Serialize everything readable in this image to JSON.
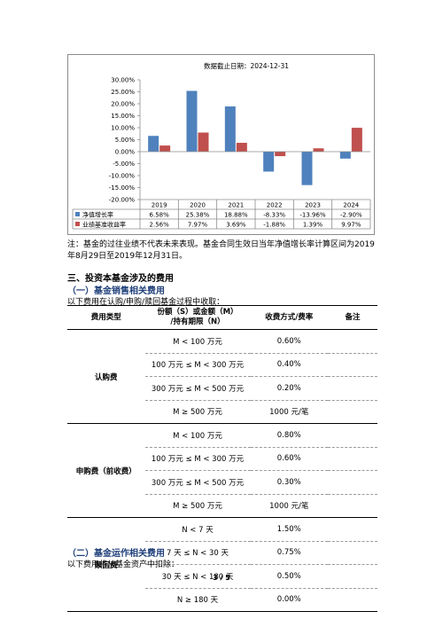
{
  "chart_data": {
    "type": "bar",
    "title": "数据截止日期：2024-12-31",
    "categories": [
      "2019",
      "2020",
      "2021",
      "2022",
      "2023",
      "2024"
    ],
    "series": [
      {
        "name": "净值增长率",
        "values": [
          6.58,
          25.38,
          18.88,
          -8.33,
          -13.96,
          -2.9
        ],
        "labels": [
          "6.58%",
          "25.38%",
          "18.88%",
          "-8.33%",
          "-13.96%",
          "-2.90%"
        ],
        "color": "#4f81bd"
      },
      {
        "name": "业绩基准收益率",
        "values": [
          2.56,
          7.97,
          3.69,
          -1.88,
          1.39,
          9.97
        ],
        "labels": [
          "2.56%",
          "7.97%",
          "3.69%",
          "-1.88%",
          "1.39%",
          "9.97%"
        ],
        "color": "#c0504d"
      }
    ],
    "ylim": [
      -20,
      30
    ],
    "yticks": [
      "30.00%",
      "25.00%",
      "20.00%",
      "15.00%",
      "10.00%",
      "5.00%",
      "0.00%",
      "-5.00%",
      "-10.00%",
      "-15.00%",
      "-20.00%"
    ],
    "legend": "data-table-bottom"
  },
  "note": "注：基金的过往业绩不代表未来表现。基金合同生效日当年净值增长率计算区间为2019年8月29日至2019年12月31日。",
  "section_title": "三、投资本基金涉及的费用",
  "subsection1": "（一）基金销售相关费用",
  "intro1": "以下费用在认购/申购/赎回基金过程中收取：",
  "table": {
    "headers": {
      "type": "费用类型",
      "range_line1": "份额（S）或金额（M）",
      "range_line2": "/持有期限（N）",
      "rate": "收费方式/费率",
      "remark": "备注"
    },
    "groups": [
      {
        "category": "认购费",
        "rows": [
          {
            "range": "M < 100 万元",
            "rate": "0.60%"
          },
          {
            "range": "100 万元 ≤ M < 300 万元",
            "rate": "0.40%"
          },
          {
            "range": "300 万元 ≤ M < 500 万元",
            "rate": "0.20%"
          },
          {
            "range": "M ≥ 500 万元",
            "rate": "1000 元/笔"
          }
        ]
      },
      {
        "category": "申购费（前收费）",
        "rows": [
          {
            "range": "M < 100 万元",
            "rate": "0.80%"
          },
          {
            "range": "100 万元 ≤ M < 300 万元",
            "rate": "0.60%"
          },
          {
            "range": "300 万元 ≤ M < 500 万元",
            "rate": "0.30%"
          },
          {
            "range": "M ≥ 500 万元",
            "rate": "1000 元/笔"
          }
        ]
      },
      {
        "category": "赎回费",
        "rows": [
          {
            "range": "N < 7 天",
            "rate": "1.50%"
          },
          {
            "range": "7 天 ≤ N < 30 天",
            "rate": "0.75%"
          },
          {
            "range": "30 天 ≤ N < 180 天",
            "rate": "0.50%"
          },
          {
            "range": "N ≥ 180 天",
            "rate": "0.00%"
          }
        ]
      }
    ]
  },
  "subsection2": "（二）基金运作相关费用",
  "intro2": "以下费用将从基金资产中扣除：",
  "page_number": "3 / 5"
}
